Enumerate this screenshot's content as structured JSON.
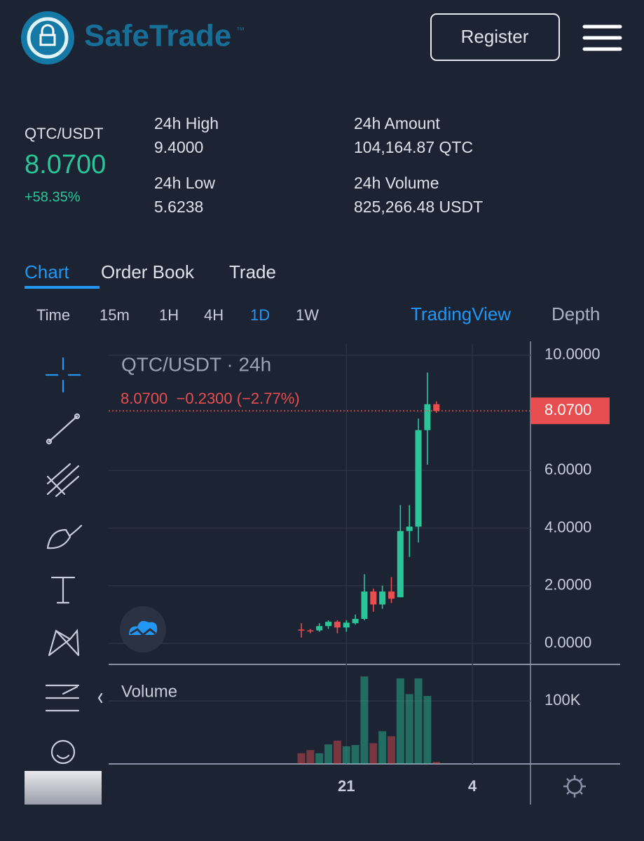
{
  "header": {
    "brand": "SafeTrade",
    "trademark": "™",
    "register": "Register"
  },
  "ticker": {
    "pair": "QTC/USDT",
    "price": "8.0700",
    "change": "+58.35%",
    "stats": [
      {
        "label": "24h High",
        "value": "9.4000"
      },
      {
        "label": "24h Low",
        "value": "5.6238"
      },
      {
        "label": "24h Amount",
        "value": "104,164.87 QTC"
      },
      {
        "label": "24h Volume",
        "value": "825,266.48 USDT"
      }
    ]
  },
  "tabs": [
    "Chart",
    "Order Book",
    "Trade"
  ],
  "intervals": [
    "Time",
    "15m",
    "1H",
    "4H",
    "1D",
    "1W"
  ],
  "views": [
    "TradingView",
    "Depth"
  ],
  "chart_data": {
    "type": "candlestick",
    "title": "QTC/USDT · 24h",
    "legend": "8.0700  −0.2300 (−2.77%)",
    "categories": [
      null,
      null,
      null,
      null,
      null,
      "21",
      null,
      null,
      null,
      null,
      null,
      null,
      null,
      null,
      null,
      null,
      null,
      null,
      null,
      "4"
    ],
    "open": [
      0.48,
      0.45,
      0.45,
      0.6,
      0.75,
      0.55,
      0.7,
      0.85,
      1.8,
      1.35,
      1.8,
      1.6,
      3.9,
      4.05,
      7.4,
      8.3,
      null,
      null,
      null,
      null
    ],
    "high": [
      0.7,
      0.5,
      0.7,
      0.8,
      0.8,
      0.8,
      1.0,
      2.4,
      1.9,
      2.0,
      2.3,
      4.8,
      4.8,
      7.8,
      9.4,
      8.4,
      null,
      null,
      null,
      null
    ],
    "low": [
      0.2,
      0.35,
      0.4,
      0.5,
      0.35,
      0.4,
      0.65,
      0.8,
      1.1,
      1.2,
      1.4,
      1.6,
      3.0,
      3.5,
      6.2,
      8.0,
      null,
      null,
      null,
      null
    ],
    "close": [
      0.45,
      0.42,
      0.6,
      0.75,
      0.55,
      0.72,
      0.85,
      1.8,
      1.35,
      1.8,
      1.55,
      3.9,
      4.05,
      7.4,
      8.3,
      8.07,
      null,
      null,
      null,
      null
    ],
    "up_color": "#2bc59a",
    "down_color": "#e84e4f",
    "ylim": [
      -0.73,
      10.41
    ],
    "yticks": [
      {
        "value": 0,
        "label": "0.0000"
      },
      {
        "value": 2,
        "label": "2.0000"
      },
      {
        "value": 4,
        "label": "4.0000"
      },
      {
        "value": 6,
        "label": "6.0000"
      },
      {
        "value": 10,
        "label": "10.0000"
      }
    ],
    "last_price": {
      "value": 8.07,
      "label": "8.0700"
    },
    "grid": true,
    "volume": {
      "title": "Volume",
      "values": [
        17000,
        22000,
        17000,
        31000,
        37000,
        28000,
        30000,
        139000,
        33000,
        52000,
        44000,
        136000,
        111000,
        136000,
        108000,
        3000,
        null,
        null,
        null,
        null
      ],
      "ylim": [
        0,
        156000
      ],
      "yticks": [
        {
          "value": 100000,
          "label": "100K"
        }
      ]
    }
  }
}
